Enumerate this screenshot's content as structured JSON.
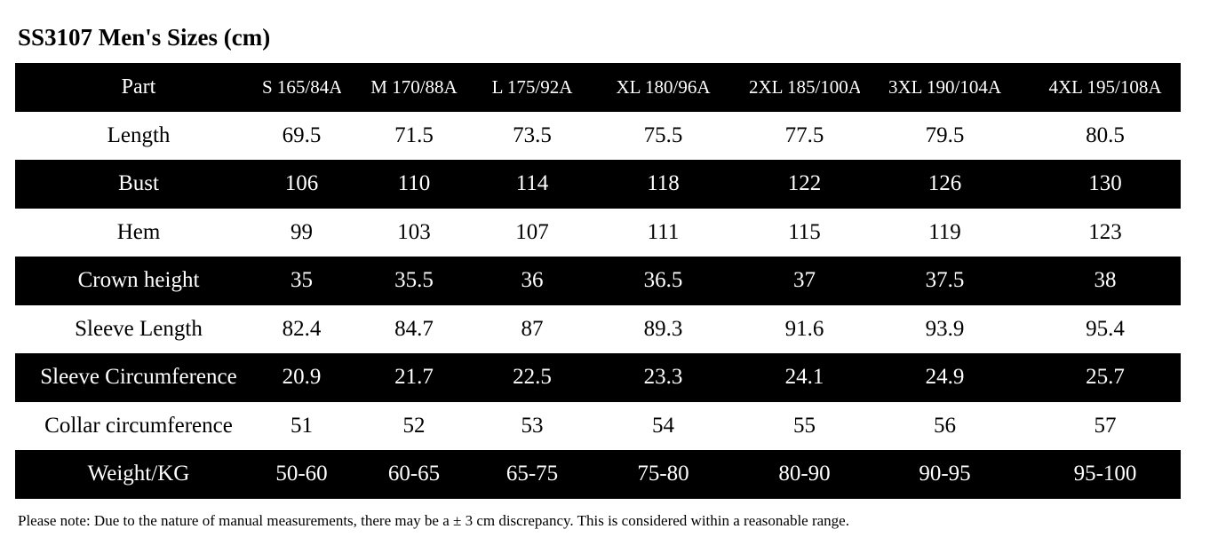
{
  "title": "SS3107 Men's Sizes (cm)",
  "header": {
    "part": "Part",
    "sizes": [
      "S 165/84A",
      "M 170/88A",
      "L 175/92A",
      "XL 180/96A",
      "2XL 185/100A",
      "3XL 190/104A",
      "4XL 195/108A"
    ]
  },
  "rows": [
    {
      "label": "Length",
      "values": [
        "69.5",
        "71.5",
        "73.5",
        "75.5",
        "77.5",
        "79.5",
        "80.5"
      ]
    },
    {
      "label": "Bust",
      "values": [
        "106",
        "110",
        "114",
        "118",
        "122",
        "126",
        "130"
      ]
    },
    {
      "label": "Hem",
      "values": [
        "99",
        "103",
        "107",
        "111",
        "115",
        "119",
        "123"
      ]
    },
    {
      "label": "Crown height",
      "values": [
        "35",
        "35.5",
        "36",
        "36.5",
        "37",
        "37.5",
        "38"
      ]
    },
    {
      "label": "Sleeve Length",
      "values": [
        "82.4",
        "84.7",
        "87",
        "89.3",
        "91.6",
        "93.9",
        "95.4"
      ]
    },
    {
      "label": "Sleeve Circumference",
      "values": [
        "20.9",
        "21.7",
        "22.5",
        "23.3",
        "24.1",
        "24.9",
        "25.7"
      ]
    },
    {
      "label": "Collar circumference",
      "values": [
        "51",
        "52",
        "53",
        "54",
        "55",
        "56",
        "57"
      ]
    },
    {
      "label": "Weight/KG",
      "values": [
        "50-60",
        "60-65",
        "65-75",
        "75-80",
        "80-90",
        "90-95",
        "95-100"
      ]
    }
  ],
  "note": "Please note: Due to the nature of manual measurements, there may be a ± 3 cm discrepancy. This is considered within a reasonable range.",
  "colors": {
    "dark_row": "#000000",
    "light_row": "#ffffff"
  }
}
